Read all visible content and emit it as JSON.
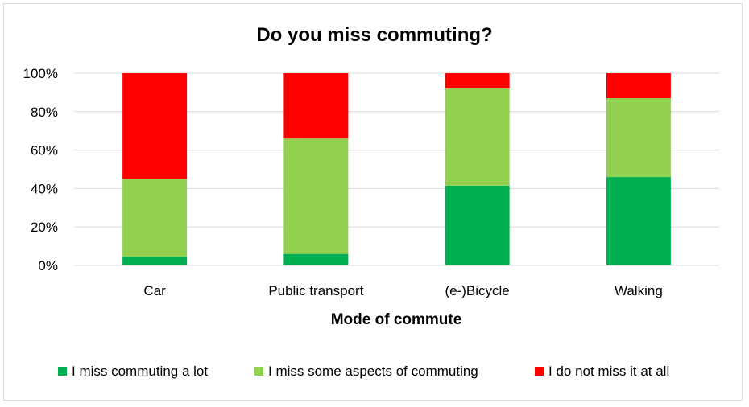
{
  "chart_data": {
    "type": "bar",
    "stacked": true,
    "title": "Do you miss commuting?",
    "xlabel": "Mode of commute",
    "ylabel": "",
    "ylim": [
      0,
      100
    ],
    "yticks": [
      "0%",
      "20%",
      "40%",
      "60%",
      "80%",
      "100%"
    ],
    "grid": true,
    "legend_position": "bottom",
    "categories": [
      "Car",
      "Public transport",
      "(e-)Bicycle",
      "Walking"
    ],
    "series": [
      {
        "name": "I miss commuting a lot",
        "color": "#00b050",
        "values": [
          4.5,
          6,
          41.5,
          46
        ]
      },
      {
        "name": "I miss some aspects of commuting",
        "color": "#92d050",
        "values": [
          40.5,
          60,
          50.5,
          41
        ]
      },
      {
        "name": "I do not miss it at all",
        "color": "#ff0000",
        "values": [
          55,
          34,
          8,
          13
        ]
      }
    ]
  }
}
